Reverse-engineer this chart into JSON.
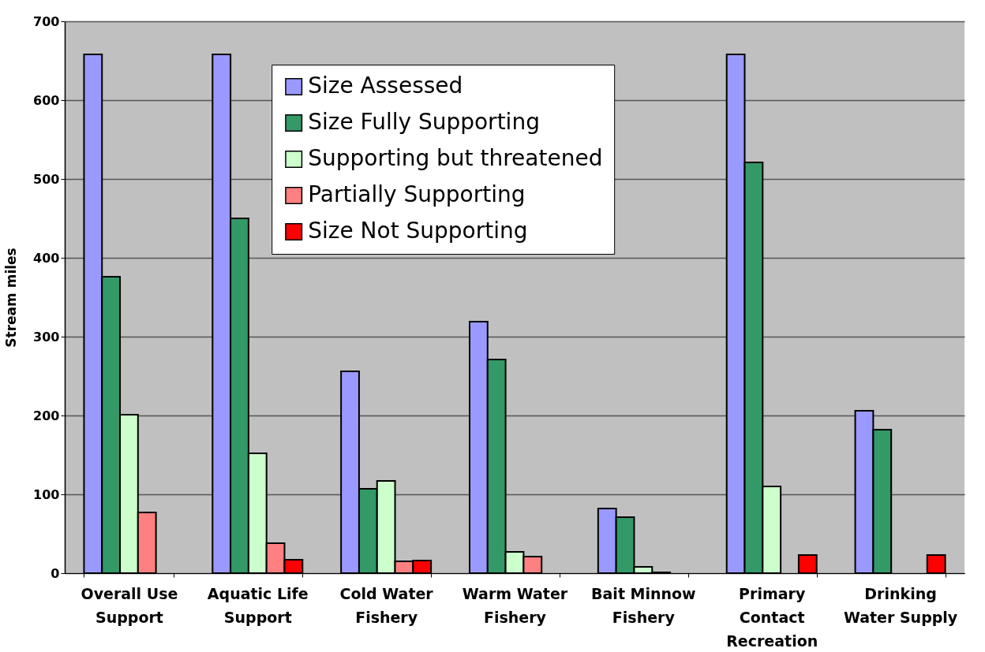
{
  "chart_data": {
    "type": "bar",
    "ylabel": "Stream miles",
    "categories": [
      "Overall Use Support",
      "Aquatic Life Support",
      "Cold Water Fishery",
      "Warm Water Fishery",
      "Bait Minnow Fishery",
      "Primary Contact Recreation",
      "Drinking Water Supply"
    ],
    "series": [
      {
        "name": "Size Assessed",
        "color": "#9999ff",
        "values": [
          658,
          658,
          256,
          319,
          82,
          658,
          206
        ]
      },
      {
        "name": "Size Fully Supporting",
        "color": "#339966",
        "values": [
          376,
          450,
          107,
          271,
          71,
          521,
          182
        ]
      },
      {
        "name": "Supporting but threatened",
        "color": "#ccffcc",
        "values": [
          201,
          152,
          117,
          27,
          8,
          110,
          null
        ]
      },
      {
        "name": "Partially Supporting",
        "color": "#ff8080",
        "values": [
          77,
          38,
          15,
          21,
          1,
          null,
          null
        ]
      },
      {
        "name": "Size Not Supporting",
        "color": "#ff0000",
        "values": [
          null,
          17,
          16,
          null,
          null,
          23,
          23
        ]
      }
    ],
    "ylim": [
      0,
      700
    ],
    "yticks": [
      0,
      100,
      200,
      300,
      400,
      500,
      600,
      700
    ],
    "grid": "y",
    "legend": "top"
  }
}
